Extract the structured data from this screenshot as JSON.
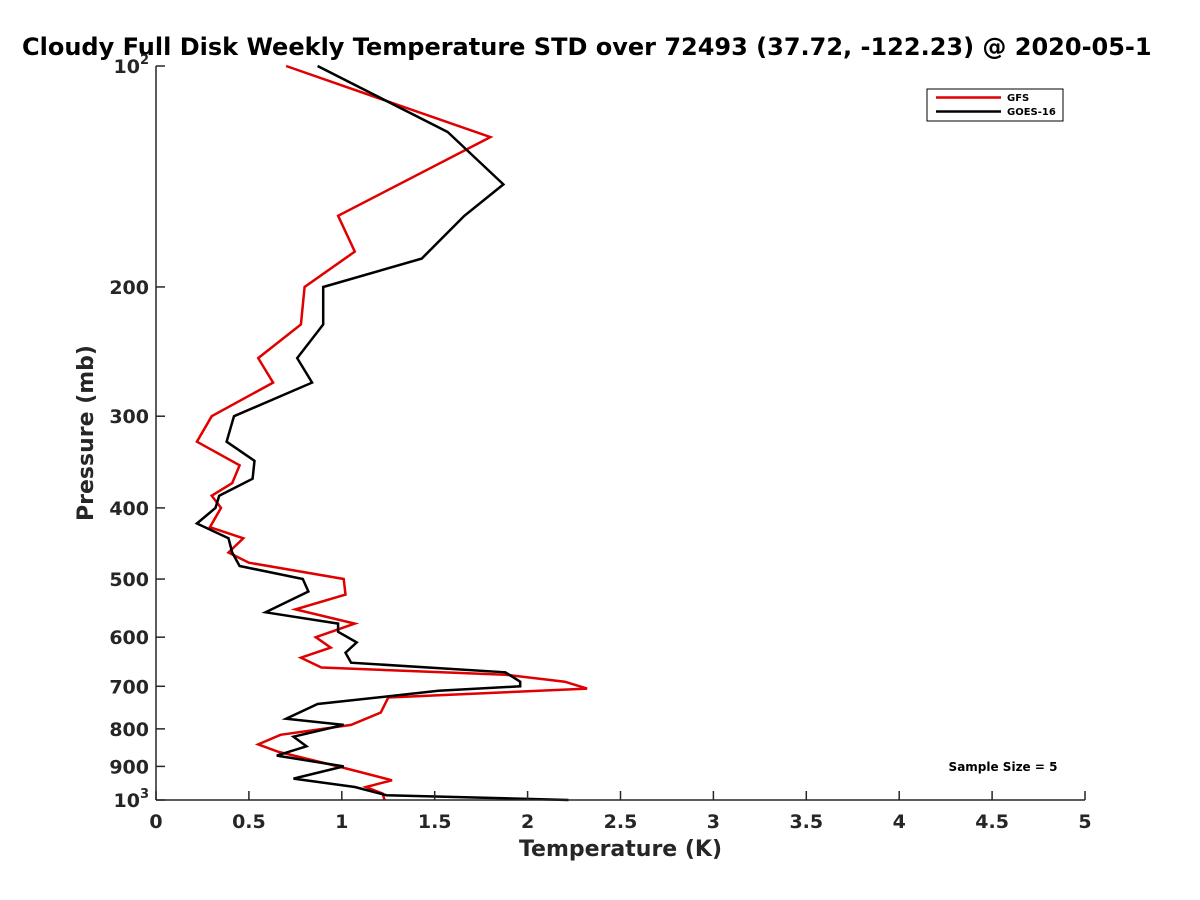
{
  "chart_data": {
    "type": "line",
    "title": "Cloudy Full Disk Weekly Temperature STD over 72493 (37.72, -122.23) @ 2020-05-1",
    "xlabel": "Temperature (K)",
    "ylabel": "Pressure (mb)",
    "xlim": [
      0,
      5
    ],
    "ylim": [
      100,
      1000
    ],
    "yscale": "log",
    "y_reversed": true,
    "grid": false,
    "legend_position": "top-right",
    "x_ticks": [
      "0",
      "0.5",
      "1",
      "1.5",
      "2",
      "2.5",
      "3",
      "3.5",
      "4",
      "4.5",
      "5"
    ],
    "y_ticks": [
      {
        "value": 100,
        "base": "10",
        "exp": "2"
      },
      {
        "value": 200,
        "label": "200"
      },
      {
        "value": 300,
        "label": "300"
      },
      {
        "value": 400,
        "label": "400"
      },
      {
        "value": 500,
        "label": "500"
      },
      {
        "value": 600,
        "label": "600"
      },
      {
        "value": 700,
        "label": "700"
      },
      {
        "value": 800,
        "label": "800"
      },
      {
        "value": 900,
        "label": "900"
      },
      {
        "value": 1000,
        "base": "10",
        "exp": "3"
      }
    ],
    "annotation": "Sample Size = 5",
    "series": [
      {
        "name": "GFS",
        "color": "#e00000",
        "points": [
          [
            0.7,
            100
          ],
          [
            1.8,
            125
          ],
          [
            0.98,
            160
          ],
          [
            1.07,
            179
          ],
          [
            0.8,
            200
          ],
          [
            0.78,
            225
          ],
          [
            0.55,
            250
          ],
          [
            0.63,
            270
          ],
          [
            0.3,
            300
          ],
          [
            0.22,
            325
          ],
          [
            0.45,
            350
          ],
          [
            0.41,
            370
          ],
          [
            0.3,
            385
          ],
          [
            0.35,
            400
          ],
          [
            0.29,
            425
          ],
          [
            0.47,
            440
          ],
          [
            0.39,
            460
          ],
          [
            0.5,
            475
          ],
          [
            1.01,
            500
          ],
          [
            1.02,
            525
          ],
          [
            0.75,
            550
          ],
          [
            1.07,
            575
          ],
          [
            0.86,
            600
          ],
          [
            0.94,
            620
          ],
          [
            0.78,
            640
          ],
          [
            0.89,
            660
          ],
          [
            1.88,
            675
          ],
          [
            2.2,
            690
          ],
          [
            2.32,
            705
          ],
          [
            1.25,
            725
          ],
          [
            1.21,
            760
          ],
          [
            1.05,
            790
          ],
          [
            0.67,
            815
          ],
          [
            0.55,
            840
          ],
          [
            0.66,
            860
          ],
          [
            0.98,
            900
          ],
          [
            1.27,
            940
          ],
          [
            1.13,
            960
          ],
          [
            1.22,
            980
          ],
          [
            1.23,
            1000
          ]
        ]
      },
      {
        "name": "GOES-16",
        "color": "#000000",
        "points": [
          [
            0.87,
            100
          ],
          [
            1.57,
            123
          ],
          [
            1.87,
            145
          ],
          [
            1.66,
            160
          ],
          [
            1.43,
            183
          ],
          [
            0.9,
            200
          ],
          [
            0.9,
            225
          ],
          [
            0.76,
            250
          ],
          [
            0.84,
            270
          ],
          [
            0.42,
            300
          ],
          [
            0.38,
            325
          ],
          [
            0.53,
            345
          ],
          [
            0.52,
            365
          ],
          [
            0.34,
            385
          ],
          [
            0.32,
            400
          ],
          [
            0.22,
            420
          ],
          [
            0.39,
            440
          ],
          [
            0.41,
            460
          ],
          [
            0.45,
            480
          ],
          [
            0.79,
            500
          ],
          [
            0.82,
            520
          ],
          [
            0.59,
            555
          ],
          [
            0.98,
            575
          ],
          [
            0.98,
            590
          ],
          [
            1.08,
            610
          ],
          [
            1.02,
            630
          ],
          [
            1.05,
            650
          ],
          [
            1.88,
            670
          ],
          [
            1.96,
            690
          ],
          [
            1.96,
            700
          ],
          [
            1.52,
            710
          ],
          [
            0.87,
            740
          ],
          [
            0.7,
            775
          ],
          [
            1.01,
            790
          ],
          [
            0.74,
            820
          ],
          [
            0.81,
            845
          ],
          [
            0.65,
            870
          ],
          [
            1.01,
            900
          ],
          [
            0.74,
            935
          ],
          [
            1.07,
            960
          ],
          [
            1.24,
            985
          ],
          [
            2.22,
            1000
          ]
        ]
      }
    ]
  }
}
